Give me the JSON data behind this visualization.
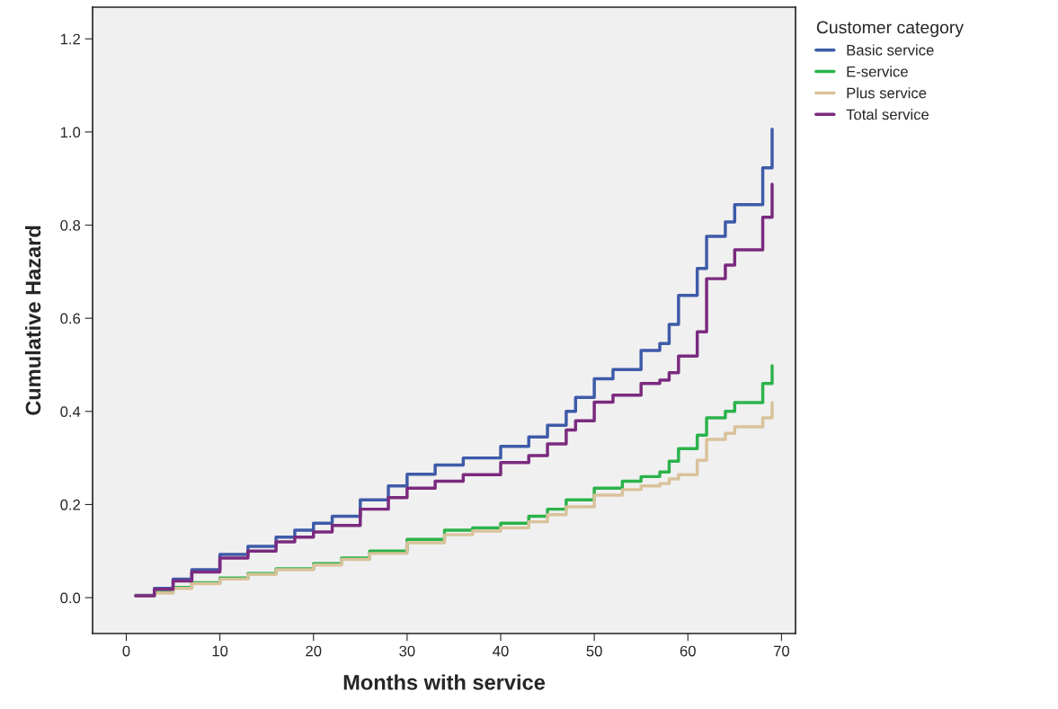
{
  "chart_data": {
    "type": "step",
    "xlabel": "Months with service",
    "ylabel": "Cumulative Hazard",
    "legend_title": "Customer category",
    "legend": "right",
    "grid": false,
    "xlim": [
      -3.6,
      71.5
    ],
    "ylim": [
      -0.077,
      1.268
    ],
    "xticks": [
      0,
      10,
      20,
      30,
      40,
      50,
      60,
      70
    ],
    "yticks": [
      {
        "value": 0,
        "label": "0.0"
      },
      {
        "value": 0.2,
        "label": "0.2"
      },
      {
        "value": 0.4,
        "label": "0.4"
      },
      {
        "value": 0.6,
        "label": "0.6"
      },
      {
        "value": 0.8,
        "label": "0.8"
      },
      {
        "value": 1.0,
        "label": "1.0"
      },
      {
        "value": 1.2,
        "label": "1.2"
      }
    ],
    "series": [
      {
        "name": "Basic service",
        "color": "#3e5ba9",
        "x": [
          1,
          3,
          5,
          7,
          10,
          13,
          16,
          18,
          20,
          22,
          25,
          28,
          30,
          33,
          36,
          40,
          43,
          45,
          47,
          48,
          50,
          52,
          55,
          57,
          58,
          59,
          61,
          62,
          64,
          65,
          68,
          69
        ],
        "values": [
          0.005,
          0.02,
          0.04,
          0.06,
          0.093,
          0.11,
          0.13,
          0.145,
          0.16,
          0.175,
          0.21,
          0.24,
          0.265,
          0.285,
          0.3,
          0.325,
          0.345,
          0.37,
          0.4,
          0.43,
          0.47,
          0.49,
          0.531,
          0.546,
          0.587,
          0.649,
          0.707,
          0.776,
          0.807,
          0.844,
          0.923,
          1.006
        ]
      },
      {
        "name": "E-service",
        "color": "#2bb34b",
        "x": [
          1,
          3,
          5,
          7,
          10,
          13,
          16,
          20,
          23,
          26,
          30,
          34,
          37,
          40,
          43,
          45,
          47,
          50,
          53,
          55,
          57,
          58,
          59,
          61,
          62,
          64,
          65,
          68,
          69
        ],
        "values": [
          0.004,
          0.012,
          0.022,
          0.032,
          0.042,
          0.052,
          0.062,
          0.073,
          0.085,
          0.1,
          0.125,
          0.145,
          0.15,
          0.16,
          0.175,
          0.19,
          0.21,
          0.235,
          0.25,
          0.26,
          0.27,
          0.293,
          0.32,
          0.349,
          0.386,
          0.4,
          0.419,
          0.46,
          0.498
        ]
      },
      {
        "name": "Plus service",
        "color": "#d9c29b",
        "x": [
          1,
          3,
          5,
          7,
          10,
          13,
          16,
          20,
          23,
          26,
          30,
          34,
          37,
          40,
          43,
          45,
          47,
          50,
          53,
          55,
          57,
          58,
          59,
          61,
          62,
          64,
          65,
          68,
          69
        ],
        "values": [
          0.004,
          0.01,
          0.02,
          0.03,
          0.04,
          0.05,
          0.06,
          0.07,
          0.082,
          0.095,
          0.118,
          0.135,
          0.143,
          0.15,
          0.163,
          0.178,
          0.195,
          0.22,
          0.232,
          0.24,
          0.245,
          0.255,
          0.264,
          0.295,
          0.34,
          0.353,
          0.367,
          0.386,
          0.419
        ]
      },
      {
        "name": "Total service",
        "color": "#7b2a7f",
        "x": [
          1,
          3,
          5,
          7,
          10,
          13,
          16,
          18,
          20,
          22,
          25,
          28,
          30,
          33,
          36,
          40,
          43,
          45,
          47,
          48,
          50,
          52,
          55,
          57,
          58,
          59,
          61,
          62,
          64,
          65,
          68,
          69
        ],
        "values": [
          0.004,
          0.018,
          0.036,
          0.055,
          0.085,
          0.1,
          0.12,
          0.13,
          0.141,
          0.155,
          0.19,
          0.215,
          0.235,
          0.25,
          0.264,
          0.29,
          0.305,
          0.33,
          0.36,
          0.38,
          0.42,
          0.435,
          0.46,
          0.467,
          0.483,
          0.519,
          0.571,
          0.685,
          0.714,
          0.747,
          0.817,
          0.888
        ]
      }
    ]
  }
}
